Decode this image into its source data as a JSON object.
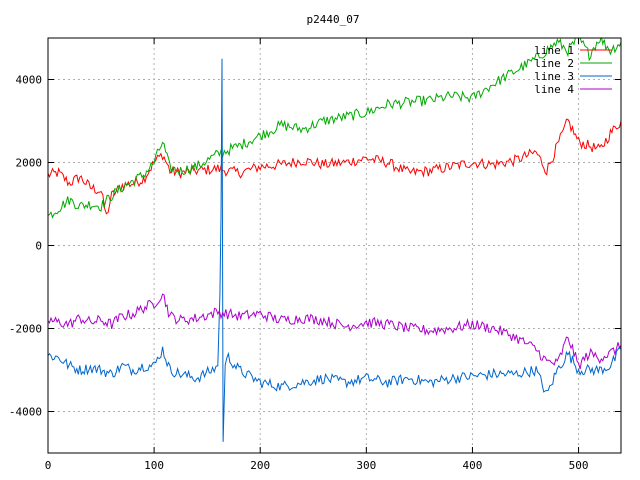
{
  "chart_data": {
    "type": "line",
    "title": "p2440_07",
    "xlabel": "",
    "ylabel": "",
    "xlim": [
      0,
      540
    ],
    "ylim": [
      -5000,
      5000
    ],
    "xticks": [
      0,
      100,
      200,
      300,
      400,
      500
    ],
    "yticks": [
      -4000,
      -2000,
      0,
      2000,
      4000
    ],
    "grid": true,
    "legend_position": "top-right",
    "series": [
      {
        "name": "line 1",
        "color": "#ff0000",
        "x": [
          0,
          10,
          20,
          30,
          40,
          50,
          55,
          60,
          70,
          80,
          90,
          100,
          108,
          115,
          125,
          140,
          160,
          180,
          200,
          220,
          240,
          260,
          280,
          300,
          320,
          340,
          360,
          380,
          400,
          420,
          440,
          460,
          470,
          480,
          490,
          500,
          510,
          520,
          530,
          540
        ],
        "y": [
          1700,
          1750,
          1500,
          1650,
          1400,
          1300,
          700,
          1200,
          1450,
          1500,
          1600,
          2000,
          2200,
          1800,
          1750,
          1800,
          1850,
          1750,
          1900,
          1950,
          2050,
          1950,
          2000,
          2100,
          2000,
          1750,
          1800,
          1900,
          2000,
          1950,
          2050,
          2250,
          1800,
          2400,
          3000,
          2500,
          2400,
          2300,
          2700,
          3000
        ]
      },
      {
        "name": "line 2",
        "color": "#00aa00",
        "x": [
          0,
          10,
          20,
          30,
          40,
          50,
          60,
          70,
          80,
          90,
          100,
          108,
          115,
          125,
          140,
          160,
          180,
          200,
          220,
          240,
          260,
          280,
          300,
          320,
          340,
          360,
          380,
          400,
          420,
          440,
          460,
          480,
          490,
          500,
          510,
          520,
          530,
          540
        ],
        "y": [
          700,
          900,
          1100,
          950,
          1000,
          950,
          1200,
          1400,
          1550,
          1700,
          2000,
          2500,
          1850,
          1800,
          1900,
          2200,
          2400,
          2650,
          2900,
          2800,
          3000,
          3100,
          3200,
          3400,
          3450,
          3500,
          3600,
          3550,
          3900,
          4200,
          4500,
          4900,
          4700,
          5000,
          4600,
          5000,
          4700,
          4900
        ]
      },
      {
        "name": "line 3",
        "color": "#0066cc",
        "x": [
          0,
          10,
          20,
          30,
          40,
          50,
          60,
          70,
          80,
          90,
          100,
          108,
          115,
          125,
          140,
          155,
          160,
          162,
          163,
          164,
          165,
          166,
          167,
          170,
          180,
          200,
          220,
          240,
          260,
          280,
          300,
          320,
          340,
          360,
          380,
          400,
          420,
          440,
          460,
          470,
          480,
          490,
          500,
          510,
          520,
          530,
          540
        ],
        "y": [
          -2650,
          -2700,
          -2900,
          -3000,
          -2950,
          -3000,
          -3100,
          -2900,
          -3000,
          -2900,
          -2900,
          -2500,
          -3000,
          -3100,
          -3200,
          -3000,
          -2900,
          -1200,
          700,
          4500,
          -4700,
          -3900,
          -2800,
          -2700,
          -3000,
          -3300,
          -3400,
          -3300,
          -3200,
          -3300,
          -3200,
          -3300,
          -3200,
          -3300,
          -3200,
          -3150,
          -3100,
          -3100,
          -3000,
          -3600,
          -3000,
          -2600,
          -3000,
          -3000,
          -3000,
          -2900,
          -2500
        ]
      },
      {
        "name": "line 4",
        "color": "#aa00cc",
        "x": [
          0,
          10,
          20,
          30,
          40,
          50,
          60,
          70,
          80,
          90,
          100,
          108,
          115,
          125,
          140,
          160,
          180,
          200,
          220,
          240,
          260,
          280,
          300,
          320,
          340,
          360,
          380,
          400,
          420,
          440,
          460,
          470,
          480,
          490,
          500,
          510,
          520,
          530,
          540
        ],
        "y": [
          -1800,
          -1850,
          -1900,
          -1750,
          -1850,
          -1800,
          -1900,
          -1700,
          -1650,
          -1500,
          -1400,
          -1150,
          -1700,
          -1800,
          -1750,
          -1600,
          -1700,
          -1650,
          -1800,
          -1750,
          -1800,
          -1950,
          -1850,
          -1900,
          -2000,
          -2050,
          -2000,
          -1900,
          -2000,
          -2200,
          -2500,
          -2800,
          -2850,
          -2200,
          -2900,
          -2600,
          -2700,
          -2600,
          -2400
        ]
      }
    ]
  }
}
